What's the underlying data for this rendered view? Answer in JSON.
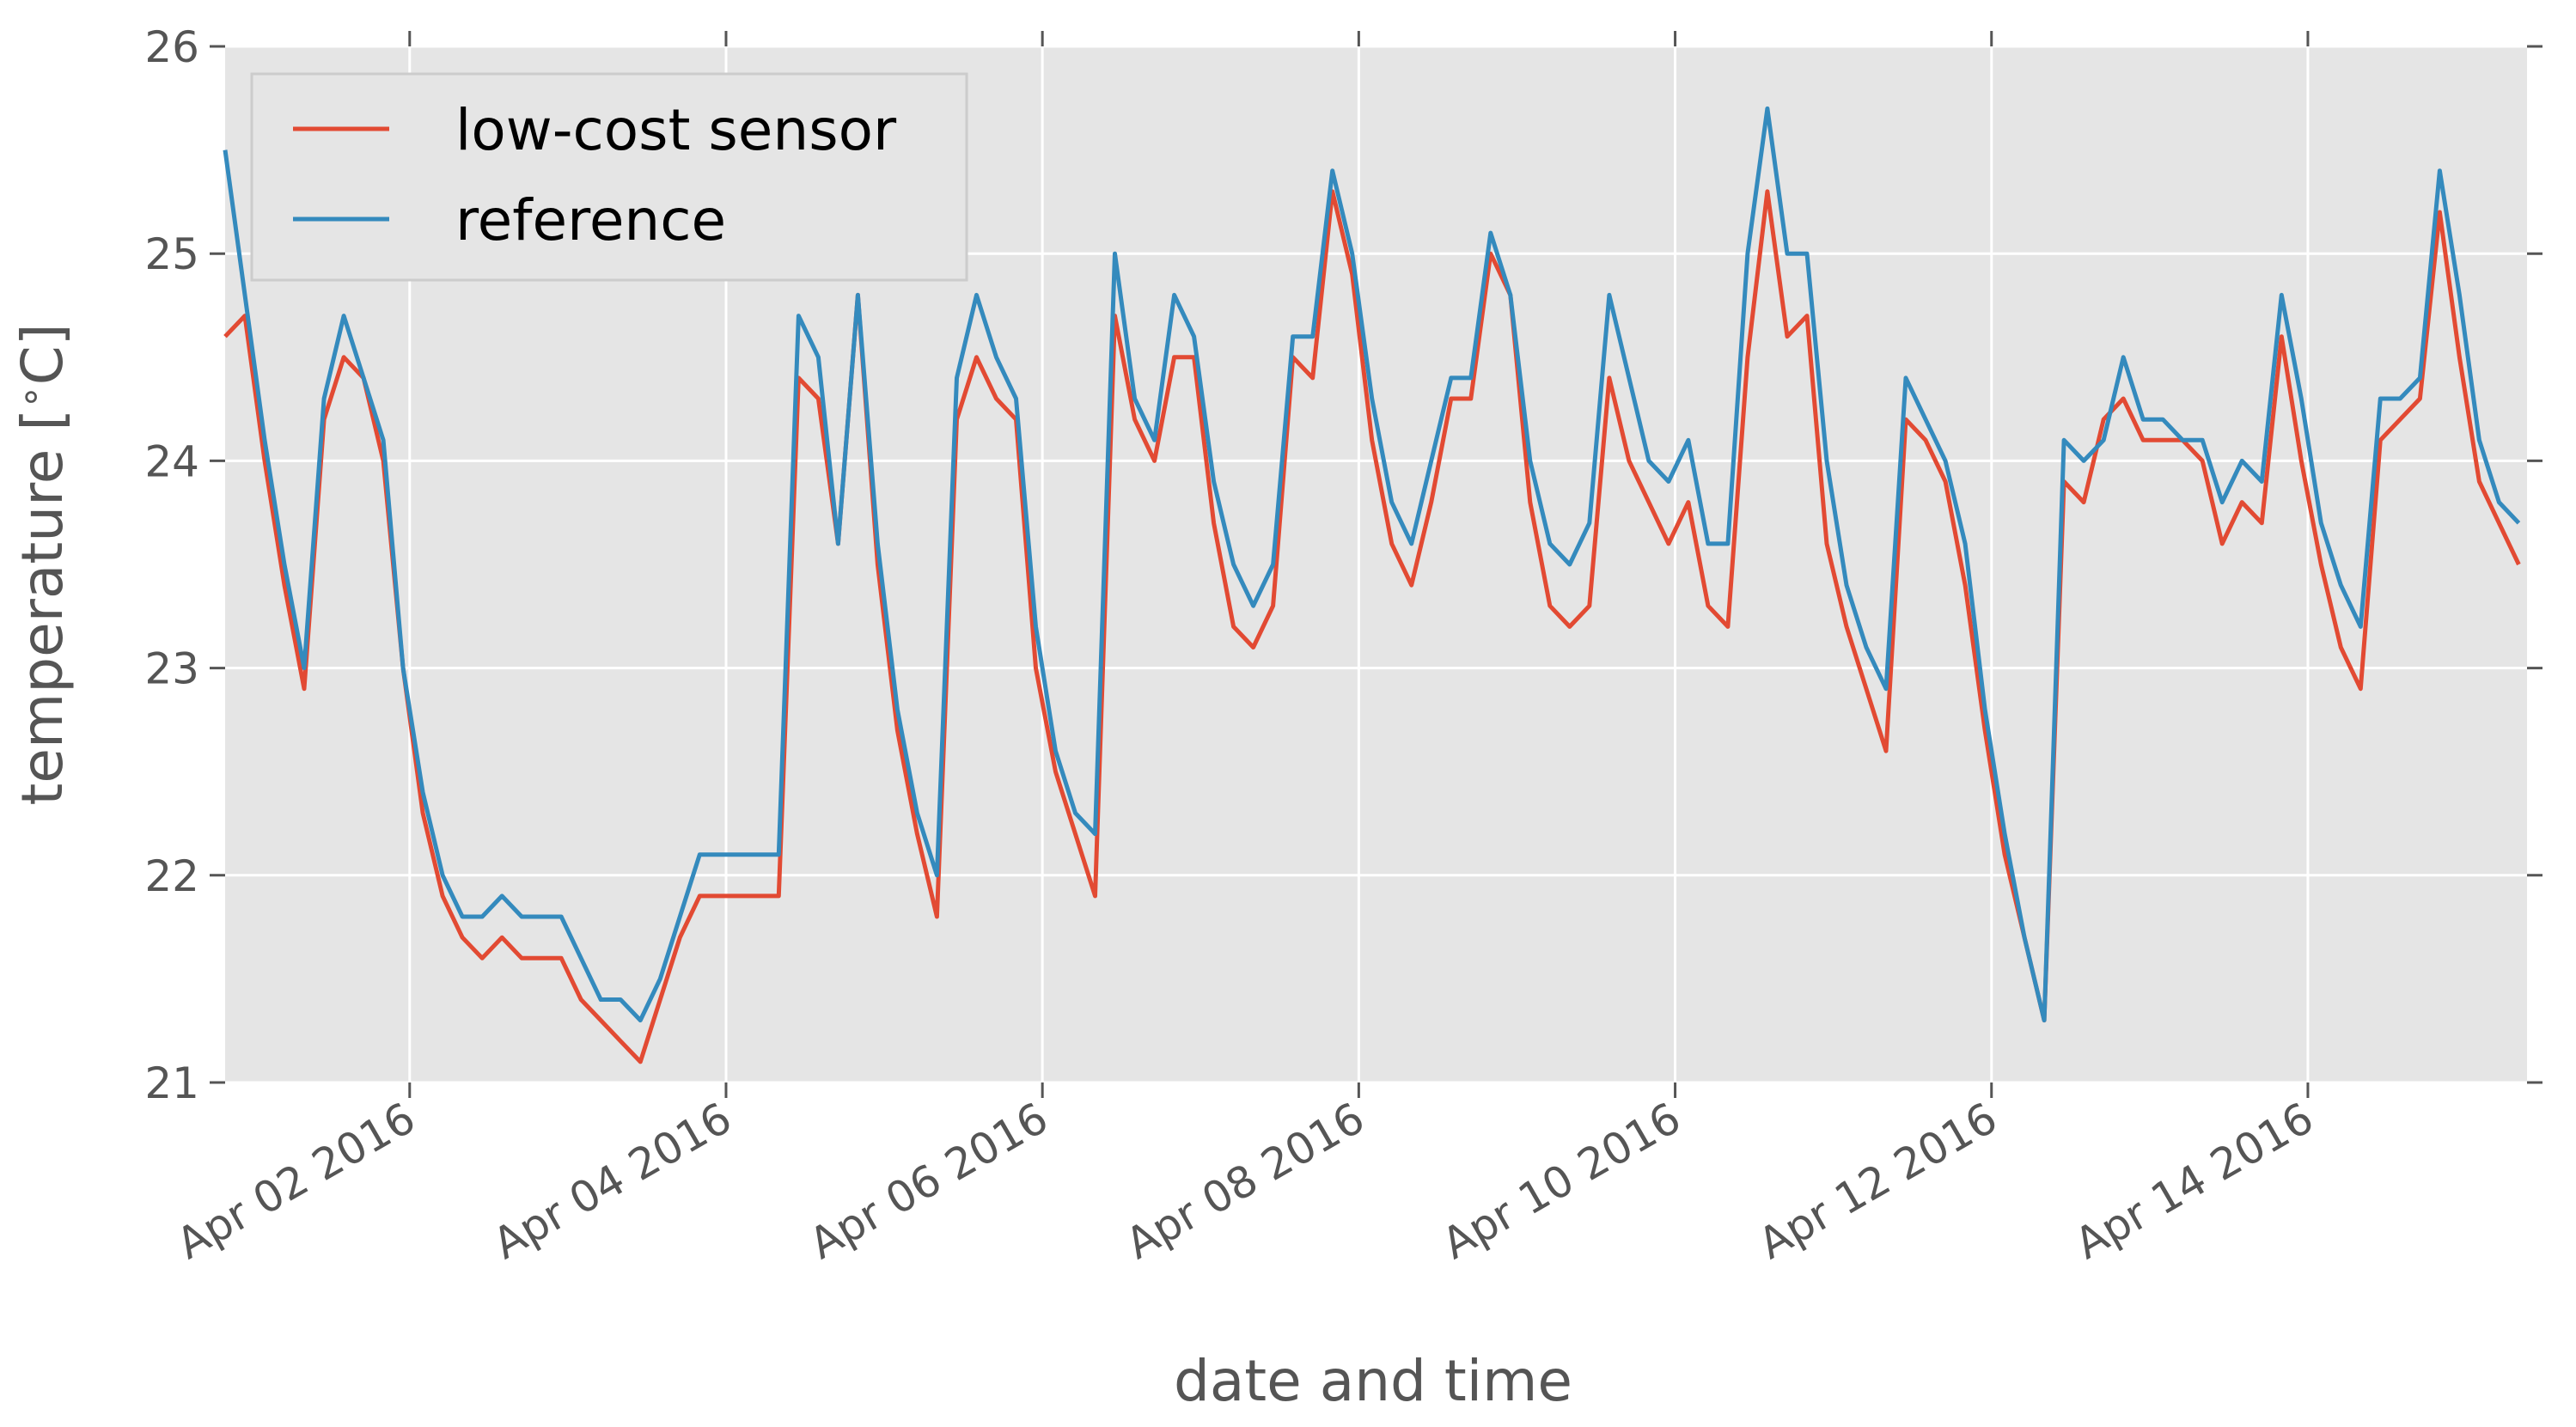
{
  "chart_data": {
    "type": "line",
    "xlabel": "date and time",
    "ylabel": "temperature [$^\\circ$C]",
    "x": [
      "2016-03-31 20:00",
      "2016-03-31 23:00",
      "2016-04-01 02:00",
      "2016-04-01 05:00",
      "2016-04-01 08:00",
      "2016-04-01 11:00",
      "2016-04-01 14:00",
      "2016-04-01 17:00",
      "2016-04-01 20:00",
      "2016-04-01 23:00",
      "2016-04-02 02:00",
      "2016-04-02 05:00",
      "2016-04-02 08:00",
      "2016-04-02 11:00",
      "2016-04-02 14:00",
      "2016-04-02 17:00",
      "2016-04-02 20:00",
      "2016-04-02 23:00",
      "2016-04-03 02:00",
      "2016-04-03 05:00",
      "2016-04-03 08:00",
      "2016-04-03 11:00",
      "2016-04-03 14:00",
      "2016-04-03 17:00",
      "2016-04-03 20:00",
      "2016-04-03 23:00",
      "2016-04-04 02:00",
      "2016-04-04 05:00",
      "2016-04-04 08:00",
      "2016-04-04 11:00",
      "2016-04-04 14:00",
      "2016-04-04 17:00",
      "2016-04-04 20:00",
      "2016-04-04 23:00",
      "2016-04-05 02:00",
      "2016-04-05 05:00",
      "2016-04-05 08:00",
      "2016-04-05 11:00",
      "2016-04-05 14:00",
      "2016-04-05 17:00",
      "2016-04-05 20:00",
      "2016-04-05 23:00",
      "2016-04-06 02:00",
      "2016-04-06 05:00",
      "2016-04-06 08:00",
      "2016-04-06 11:00",
      "2016-04-06 14:00",
      "2016-04-06 17:00",
      "2016-04-06 20:00",
      "2016-04-06 23:00",
      "2016-04-07 02:00",
      "2016-04-07 05:00",
      "2016-04-07 08:00",
      "2016-04-07 11:00",
      "2016-04-07 14:00",
      "2016-04-07 17:00",
      "2016-04-07 20:00",
      "2016-04-07 23:00",
      "2016-04-08 02:00",
      "2016-04-08 05:00",
      "2016-04-08 08:00",
      "2016-04-08 11:00",
      "2016-04-08 14:00",
      "2016-04-08 17:00",
      "2016-04-08 20:00",
      "2016-04-08 23:00",
      "2016-04-09 02:00",
      "2016-04-09 05:00",
      "2016-04-09 08:00",
      "2016-04-09 11:00",
      "2016-04-09 14:00",
      "2016-04-09 17:00",
      "2016-04-09 20:00",
      "2016-04-09 23:00",
      "2016-04-10 02:00",
      "2016-04-10 05:00",
      "2016-04-10 08:00",
      "2016-04-10 11:00",
      "2016-04-10 14:00",
      "2016-04-10 17:00",
      "2016-04-10 20:00",
      "2016-04-10 23:00",
      "2016-04-11 02:00",
      "2016-04-11 05:00",
      "2016-04-11 08:00",
      "2016-04-11 11:00",
      "2016-04-11 14:00",
      "2016-04-11 17:00",
      "2016-04-11 20:00",
      "2016-04-11 23:00",
      "2016-04-12 02:00",
      "2016-04-12 05:00",
      "2016-04-12 08:00",
      "2016-04-12 11:00",
      "2016-04-12 14:00",
      "2016-04-12 17:00",
      "2016-04-12 20:00",
      "2016-04-12 23:00",
      "2016-04-13 02:00",
      "2016-04-13 05:00",
      "2016-04-13 08:00",
      "2016-04-13 11:00",
      "2016-04-13 14:00",
      "2016-04-13 17:00",
      "2016-04-13 20:00",
      "2016-04-13 23:00",
      "2016-04-14 02:00",
      "2016-04-14 05:00",
      "2016-04-14 08:00",
      "2016-04-14 11:00",
      "2016-04-14 14:00",
      "2016-04-14 17:00",
      "2016-04-14 20:00",
      "2016-04-14 23:00",
      "2016-04-15 02:00",
      "2016-04-15 05:00",
      "2016-04-15 08:00"
    ],
    "series": [
      {
        "name": "low-cost sensor",
        "color": "#e24a33",
        "values": [
          24.6,
          24.7,
          24.0,
          23.4,
          22.9,
          24.2,
          24.5,
          24.4,
          24.0,
          23.0,
          22.3,
          21.9,
          21.7,
          21.6,
          21.7,
          21.6,
          21.6,
          21.6,
          21.4,
          21.3,
          21.2,
          21.1,
          21.4,
          21.7,
          21.9,
          21.9,
          21.9,
          21.9,
          21.9,
          24.4,
          24.3,
          23.6,
          24.8,
          23.5,
          22.7,
          22.2,
          21.8,
          24.2,
          24.5,
          24.3,
          24.2,
          23.0,
          22.5,
          22.2,
          21.9,
          24.7,
          24.2,
          24.0,
          24.5,
          24.5,
          23.7,
          23.2,
          23.1,
          23.3,
          24.5,
          24.4,
          25.3,
          24.9,
          24.1,
          23.6,
          23.4,
          23.8,
          24.3,
          24.3,
          25.0,
          24.8,
          23.8,
          23.3,
          23.2,
          23.3,
          24.4,
          24.0,
          23.8,
          23.6,
          23.8,
          23.3,
          23.2,
          24.5,
          25.3,
          24.6,
          24.7,
          23.6,
          23.2,
          22.9,
          22.6,
          24.2,
          24.1,
          23.9,
          23.4,
          22.7,
          22.1,
          21.7,
          21.3,
          23.9,
          23.8,
          24.2,
          24.3,
          24.1,
          24.1,
          24.1,
          24.0,
          23.6,
          23.8,
          23.7,
          24.6,
          24.0,
          23.5,
          23.1,
          22.9,
          24.1,
          24.2,
          24.3,
          25.2,
          24.5,
          23.9,
          23.7,
          23.5
        ]
      },
      {
        "name": "reference",
        "color": "#348abd",
        "values": [
          25.5,
          24.8,
          24.1,
          23.5,
          23.0,
          24.3,
          24.7,
          24.4,
          24.1,
          23.0,
          22.4,
          22.0,
          21.8,
          21.8,
          21.9,
          21.8,
          21.8,
          21.8,
          21.6,
          21.4,
          21.4,
          21.3,
          21.5,
          21.8,
          22.1,
          22.1,
          22.1,
          22.1,
          22.1,
          24.7,
          24.5,
          23.6,
          24.8,
          23.6,
          22.8,
          22.3,
          22.0,
          24.4,
          24.8,
          24.5,
          24.3,
          23.2,
          22.6,
          22.3,
          22.2,
          25.0,
          24.3,
          24.1,
          24.8,
          24.6,
          23.9,
          23.5,
          23.3,
          23.5,
          24.6,
          24.6,
          25.4,
          25.0,
          24.3,
          23.8,
          23.6,
          24.0,
          24.4,
          24.4,
          25.1,
          24.8,
          24.0,
          23.6,
          23.5,
          23.7,
          24.8,
          24.4,
          24.0,
          23.9,
          24.1,
          23.6,
          23.6,
          25.0,
          25.7,
          25.0,
          25.0,
          24.0,
          23.4,
          23.1,
          22.9,
          24.4,
          24.2,
          24.0,
          23.6,
          22.8,
          22.2,
          21.7,
          21.3,
          24.1,
          24.0,
          24.1,
          24.5,
          24.2,
          24.2,
          24.1,
          24.1,
          23.8,
          24.0,
          23.9,
          24.8,
          24.3,
          23.7,
          23.4,
          23.2,
          24.3,
          24.3,
          24.4,
          25.4,
          24.8,
          24.1,
          23.8,
          23.7
        ]
      }
    ],
    "xlim": [
      "2016-03-31 20:00",
      "2016-04-15 09:15"
    ],
    "xticks": [
      {
        "value": "2016-04-02",
        "label": "Apr 02 2016"
      },
      {
        "value": "2016-04-04",
        "label": "Apr 04 2016"
      },
      {
        "value": "2016-04-06",
        "label": "Apr 06 2016"
      },
      {
        "value": "2016-04-08",
        "label": "Apr 08 2016"
      },
      {
        "value": "2016-04-10",
        "label": "Apr 10 2016"
      },
      {
        "value": "2016-04-12",
        "label": "Apr 12 2016"
      },
      {
        "value": "2016-04-14",
        "label": "Apr 14 2016"
      }
    ],
    "ylim": [
      21,
      26
    ],
    "yticks": [
      21,
      22,
      23,
      24,
      25,
      26
    ],
    "grid": true,
    "legend": "upper left"
  }
}
